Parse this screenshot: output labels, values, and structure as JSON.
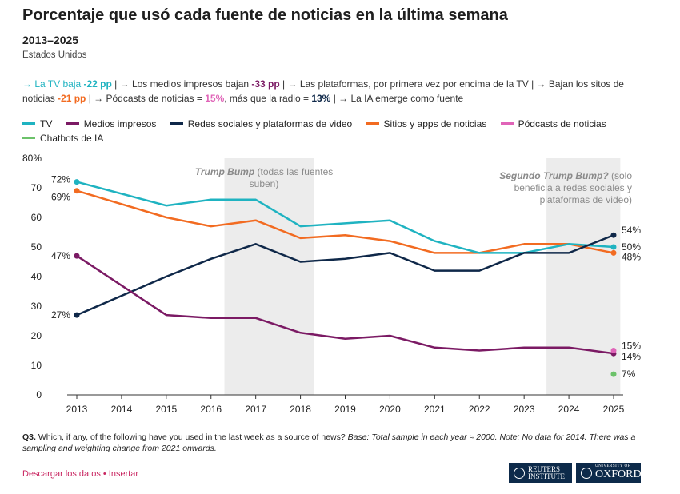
{
  "header": {
    "title": "Porcentaje que usó cada fuente de noticias en la última semana",
    "subtitle": "2013–2025",
    "region": "Estados Unidos"
  },
  "summary": {
    "tv_prefix": "→ La TV baja ",
    "tv_value": "-22 pp",
    "print_prefix": " | → Los medios impresos bajan ",
    "print_value": "-33 pp",
    "platforms_text": " | → Las plataformas, por primera vez por encima de la TV | → Bajan los sitos de noticias ",
    "sites_value": "-21 pp",
    "podcast_prefix": " | → Pódcasts de noticias = ",
    "podcast_value": "15%",
    "radio_prefix": ", más que la radio = ",
    "radio_value": "13%",
    "ai_text": " | → La IA emerge como fuente"
  },
  "legend": [
    {
      "label": "TV",
      "color": "#1fb3c1"
    },
    {
      "label": "Medios impresos",
      "color": "#7b1a64"
    },
    {
      "label": "Redes sociales y plataformas de video",
      "color": "#0f2849"
    },
    {
      "label": "Sitios y apps de noticias",
      "color": "#f26b21"
    },
    {
      "label": "Pódcasts de noticias",
      "color": "#e064b8"
    },
    {
      "label": "Chatbots de IA",
      "color": "#6cc26a"
    }
  ],
  "chart_data": {
    "type": "line",
    "x": [
      2013,
      2014,
      2015,
      2016,
      2017,
      2018,
      2019,
      2020,
      2021,
      2022,
      2023,
      2024,
      2025
    ],
    "ylim": [
      0,
      80
    ],
    "yticks": [
      "0",
      "10",
      "20",
      "30",
      "40",
      "50",
      "60",
      "70",
      "80%"
    ],
    "grid": false,
    "series": [
      {
        "name": "TV",
        "color": "#1fb3c1",
        "values": [
          72,
          null,
          64,
          66,
          66,
          57,
          58,
          59,
          52,
          48,
          48,
          51,
          50
        ],
        "start_label": "72%",
        "end_label": "50%"
      },
      {
        "name": "Medios impresos",
        "color": "#7b1a64",
        "values": [
          47,
          null,
          27,
          26,
          26,
          21,
          19,
          20,
          16,
          15,
          16,
          16,
          14
        ],
        "start_label": "47%",
        "end_label": "14%"
      },
      {
        "name": "Redes sociales y plataformas de video",
        "color": "#0f2849",
        "values": [
          27,
          null,
          40,
          46,
          51,
          45,
          46,
          48,
          42,
          42,
          48,
          48,
          54
        ],
        "start_label": "27%",
        "end_label": "54%"
      },
      {
        "name": "Sitios y apps de noticias",
        "color": "#f26b21",
        "values": [
          69,
          null,
          60,
          57,
          59,
          53,
          54,
          52,
          48,
          48,
          51,
          51,
          48
        ],
        "start_label": "69%",
        "end_label": "48%"
      },
      {
        "name": "Pódcasts de noticias",
        "color": "#e064b8",
        "values": [
          null,
          null,
          null,
          null,
          null,
          null,
          null,
          null,
          null,
          null,
          null,
          null,
          15
        ],
        "end_label": "15%"
      },
      {
        "name": "Chatbots de IA",
        "color": "#6cc26a",
        "values": [
          null,
          null,
          null,
          null,
          null,
          null,
          null,
          null,
          null,
          null,
          null,
          null,
          7
        ],
        "end_label": "7%"
      }
    ],
    "shaded_periods": [
      {
        "from": 2016.3,
        "to": 2018.3,
        "label_bold": "Trump Bump",
        "label_rest": " (todas las fuentes suben)"
      },
      {
        "from": 2023.5,
        "to": 2025.15,
        "label_bold": "Segundo Trump Bump?",
        "label_rest": " (solo beneficia a redes sociales y plataformas de video)"
      }
    ]
  },
  "note": {
    "q": "Q3.",
    "text": " Which, if any, of the following have you used in the last week as a source of news? ",
    "italic": "Base: Total sample in each year ≈ 2000. Note: No data for 2014. There was a sampling and weighting change from 2021 onwards."
  },
  "links": {
    "download": "Descargar los datos",
    "sep": " • ",
    "embed": "Insertar"
  },
  "logos": {
    "reuters_line1": "REUTERS",
    "reuters_line2": "INSTITUTE",
    "oxford_small": "UNIVERSITY OF",
    "oxford_big": "OXFORD"
  }
}
